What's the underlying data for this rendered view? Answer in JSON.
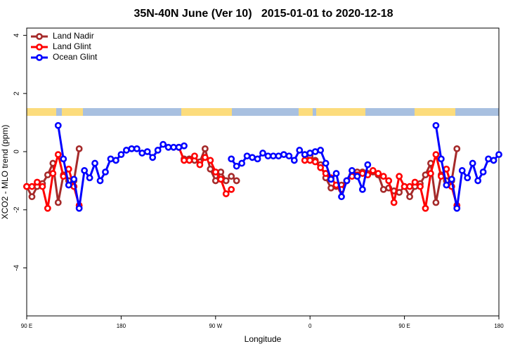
{
  "chart_data": {
    "type": "line",
    "title": "35N-40N June (Ver 10)   2015-01-01 to 2020-12-18",
    "x_label": "Longitude",
    "y_label": "XCO2 - MLO trend (ppm)",
    "xlim": [
      90,
      540
    ],
    "xticks": [
      {
        "value": 90,
        "label": "90 E"
      },
      180,
      {
        "value": 270,
        "label": "90 W"
      },
      {
        "value": 360,
        "label": "0"
      },
      {
        "value": 450,
        "label": "90 E"
      },
      {
        "value": 540,
        "label": "180"
      }
    ],
    "ylim": [
      -5.65,
      4.25
    ],
    "yticks": [
      -4,
      -2,
      0,
      2,
      4
    ],
    "legend": "top-left",
    "x": [
      90,
      95,
      100,
      105,
      110,
      115,
      120,
      125,
      130,
      135,
      140,
      145,
      150,
      155,
      160,
      165,
      170,
      175,
      180,
      185,
      190,
      195,
      200,
      205,
      210,
      215,
      220,
      225,
      230,
      235,
      240,
      245,
      250,
      255,
      260,
      265,
      270,
      275,
      280,
      285,
      290,
      295,
      300,
      305,
      310,
      315,
      320,
      325,
      330,
      335,
      340,
      345,
      350,
      355,
      360,
      365,
      370,
      375,
      380,
      385,
      390,
      395,
      400,
      405,
      410,
      415,
      420,
      425,
      430,
      435,
      440,
      445,
      450,
      455,
      460,
      465,
      470,
      475,
      480,
      485,
      490,
      495,
      500,
      505,
      510,
      515,
      520,
      525,
      530,
      535,
      540
    ],
    "series": [
      {
        "name": "Land Nadir",
        "color": "#a52a2a",
        "values": [
          -1.2,
          -1.55,
          -1.2,
          -1.1,
          -0.8,
          -0.4,
          -1.75,
          -0.8,
          -1.0,
          -1.0,
          0.1,
          null,
          null,
          null,
          null,
          null,
          null,
          null,
          null,
          null,
          null,
          null,
          null,
          null,
          null,
          null,
          null,
          null,
          null,
          null,
          -0.25,
          -0.25,
          -0.3,
          -0.35,
          0.1,
          -0.6,
          -1.0,
          -0.7,
          -1.0,
          -0.85,
          -1.0,
          null,
          null,
          null,
          null,
          null,
          null,
          null,
          null,
          null,
          null,
          null,
          null,
          -0.1,
          -0.15,
          -0.3,
          -0.45,
          -0.9,
          -1.25,
          -1.2,
          -1.15,
          -1.0,
          -0.8,
          -0.7,
          -0.7,
          -0.75,
          -0.7,
          -0.8,
          -1.3,
          -1.25,
          -1.35,
          -1.4,
          -1.2,
          -1.55,
          -1.2,
          -1.1,
          -0.8,
          -0.4,
          -1.75,
          -0.8,
          -1.0,
          -1.0,
          0.1,
          null,
          null,
          null,
          null,
          null,
          null,
          null,
          null
        ]
      },
      {
        "name": "Land Glint",
        "color": "#ff0000",
        "values": [
          -1.2,
          -1.2,
          -1.05,
          -1.2,
          -1.95,
          -0.75,
          -0.1,
          -0.85,
          -0.6,
          -1.2,
          -1.85,
          null,
          null,
          null,
          null,
          null,
          null,
          null,
          null,
          null,
          null,
          null,
          null,
          null,
          null,
          null,
          null,
          null,
          null,
          0.15,
          -0.3,
          -0.3,
          -0.15,
          -0.45,
          -0.2,
          -0.3,
          -0.7,
          -0.95,
          -1.45,
          -1.3,
          null,
          null,
          null,
          null,
          null,
          null,
          null,
          null,
          null,
          null,
          null,
          null,
          null,
          -0.3,
          -0.3,
          -0.35,
          -0.55,
          -0.75,
          -0.9,
          -1.15,
          -1.3,
          -1.0,
          -0.85,
          -0.8,
          -0.75,
          -0.8,
          -0.65,
          -0.75,
          -0.85,
          -1.0,
          -1.75,
          -0.85,
          -1.2,
          -1.2,
          -1.05,
          -1.2,
          -1.95,
          -0.75,
          -0.1,
          -0.85,
          -0.6,
          -1.2,
          -1.85,
          null,
          null,
          null,
          null,
          null,
          null,
          null,
          null
        ]
      },
      {
        "name": "Ocean Glint",
        "color": "#0000ff",
        "values": [
          null,
          null,
          null,
          null,
          null,
          null,
          0.9,
          -0.25,
          -1.15,
          -0.95,
          -1.95,
          -0.65,
          -0.9,
          -0.4,
          -1.0,
          -0.7,
          -0.25,
          -0.3,
          -0.1,
          0.05,
          0.1,
          0.1,
          -0.05,
          0.0,
          -0.2,
          0.05,
          0.25,
          0.15,
          0.15,
          0.15,
          0.2,
          null,
          null,
          null,
          null,
          null,
          null,
          null,
          null,
          -0.25,
          -0.5,
          -0.4,
          -0.15,
          -0.2,
          -0.25,
          -0.05,
          -0.15,
          -0.15,
          -0.15,
          -0.1,
          -0.15,
          -0.3,
          0.05,
          -0.1,
          -0.05,
          0.0,
          0.05,
          -0.4,
          -0.95,
          -0.75,
          -1.55,
          -1.0,
          -0.65,
          -0.85,
          -1.3,
          -0.45,
          null,
          null,
          null,
          null,
          null,
          null,
          null,
          null,
          null,
          null,
          null,
          null,
          0.9,
          -0.25,
          -1.15,
          -0.95,
          -1.95,
          -0.65,
          -0.9,
          -0.4,
          -1.0,
          -0.7,
          -0.25,
          -0.3,
          -0.1
        ]
      }
    ]
  }
}
